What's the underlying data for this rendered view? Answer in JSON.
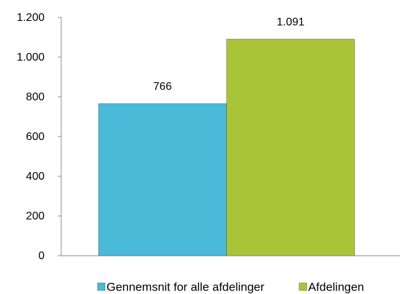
{
  "chart_data": {
    "type": "bar",
    "categories": [
      null
    ],
    "series": [
      {
        "name": "Gennemsnit for alle afdelinger",
        "color": "#4bbad8",
        "values": [
          766
        ]
      },
      {
        "name": "Afdelingen",
        "color": "#a9c437",
        "values": [
          1091
        ],
        "value_labels": [
          "1.091"
        ]
      }
    ],
    "ylim": [
      0,
      1200
    ],
    "yticks": [
      0,
      200,
      400,
      600,
      800,
      {
        "value": 1000,
        "label": "1.000"
      },
      {
        "value": 1200,
        "label": "1.200"
      }
    ],
    "grid": false,
    "legend": "bottom"
  }
}
